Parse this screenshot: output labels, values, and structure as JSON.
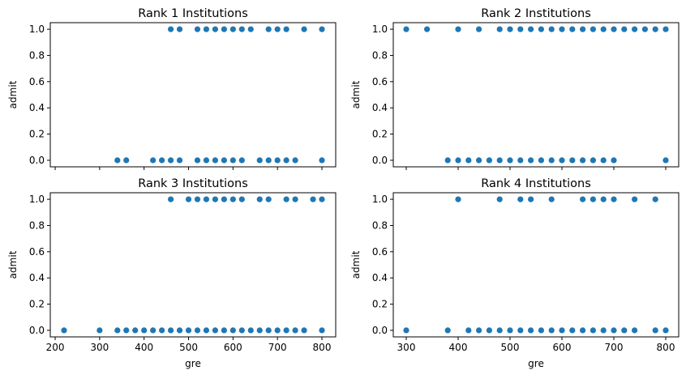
{
  "chart_data": [
    {
      "type": "scatter",
      "title": "Rank 1 Institutions",
      "xlabel": "",
      "ylabel": "admit",
      "xlim": [
        189,
        831
      ],
      "ylim": [
        -0.05,
        1.05
      ],
      "xticks": [],
      "xtick_labels": [],
      "yticks": [
        0.0,
        0.2,
        0.4,
        0.6,
        0.8,
        1.0
      ],
      "ytick_labels": [
        "0.0",
        "0.2",
        "0.4",
        "0.6",
        "0.8",
        "1.0"
      ],
      "color": "#1f77b4",
      "points": [
        [
          460,
          1
        ],
        [
          480,
          1
        ],
        [
          520,
          1
        ],
        [
          540,
          1
        ],
        [
          560,
          1
        ],
        [
          580,
          1
        ],
        [
          600,
          1
        ],
        [
          620,
          1
        ],
        [
          640,
          1
        ],
        [
          680,
          1
        ],
        [
          700,
          1
        ],
        [
          720,
          1
        ],
        [
          760,
          1
        ],
        [
          800,
          1
        ],
        [
          340,
          0
        ],
        [
          360,
          0
        ],
        [
          420,
          0
        ],
        [
          440,
          0
        ],
        [
          460,
          0
        ],
        [
          480,
          0
        ],
        [
          520,
          0
        ],
        [
          540,
          0
        ],
        [
          560,
          0
        ],
        [
          580,
          0
        ],
        [
          600,
          0
        ],
        [
          620,
          0
        ],
        [
          660,
          0
        ],
        [
          680,
          0
        ],
        [
          700,
          0
        ],
        [
          720,
          0
        ],
        [
          740,
          0
        ],
        [
          800,
          0
        ]
      ]
    },
    {
      "type": "scatter",
      "title": "Rank 2 Institutions",
      "xlabel": "",
      "ylabel": "admit",
      "xlim": [
        275,
        825
      ],
      "ylim": [
        -0.05,
        1.05
      ],
      "xticks": [],
      "xtick_labels": [],
      "yticks": [
        0.0,
        0.2,
        0.4,
        0.6,
        0.8,
        1.0
      ],
      "ytick_labels": [
        "0.0",
        "0.2",
        "0.4",
        "0.6",
        "0.8",
        "1.0"
      ],
      "color": "#1f77b4",
      "points": [
        [
          300,
          1
        ],
        [
          340,
          1
        ],
        [
          400,
          1
        ],
        [
          440,
          1
        ],
        [
          480,
          1
        ],
        [
          500,
          1
        ],
        [
          520,
          1
        ],
        [
          540,
          1
        ],
        [
          560,
          1
        ],
        [
          580,
          1
        ],
        [
          600,
          1
        ],
        [
          620,
          1
        ],
        [
          640,
          1
        ],
        [
          660,
          1
        ],
        [
          680,
          1
        ],
        [
          700,
          1
        ],
        [
          720,
          1
        ],
        [
          740,
          1
        ],
        [
          760,
          1
        ],
        [
          780,
          1
        ],
        [
          800,
          1
        ],
        [
          380,
          0
        ],
        [
          400,
          0
        ],
        [
          420,
          0
        ],
        [
          440,
          0
        ],
        [
          460,
          0
        ],
        [
          480,
          0
        ],
        [
          500,
          0
        ],
        [
          520,
          0
        ],
        [
          540,
          0
        ],
        [
          560,
          0
        ],
        [
          580,
          0
        ],
        [
          600,
          0
        ],
        [
          620,
          0
        ],
        [
          640,
          0
        ],
        [
          660,
          0
        ],
        [
          680,
          0
        ],
        [
          700,
          0
        ],
        [
          800,
          0
        ]
      ]
    },
    {
      "type": "scatter",
      "title": "Rank 3 Institutions",
      "xlabel": "gre",
      "ylabel": "admit",
      "xlim": [
        189,
        831
      ],
      "ylim": [
        -0.05,
        1.05
      ],
      "xticks": [
        200,
        300,
        400,
        500,
        600,
        700,
        800
      ],
      "xtick_labels": [
        "200",
        "300",
        "400",
        "500",
        "600",
        "700",
        "800"
      ],
      "yticks": [
        0.0,
        0.2,
        0.4,
        0.6,
        0.8,
        1.0
      ],
      "ytick_labels": [
        "0.0",
        "0.2",
        "0.4",
        "0.6",
        "0.8",
        "1.0"
      ],
      "color": "#1f77b4",
      "points": [
        [
          460,
          1
        ],
        [
          500,
          1
        ],
        [
          520,
          1
        ],
        [
          540,
          1
        ],
        [
          560,
          1
        ],
        [
          580,
          1
        ],
        [
          600,
          1
        ],
        [
          620,
          1
        ],
        [
          660,
          1
        ],
        [
          680,
          1
        ],
        [
          720,
          1
        ],
        [
          740,
          1
        ],
        [
          780,
          1
        ],
        [
          800,
          1
        ],
        [
          220,
          0
        ],
        [
          300,
          0
        ],
        [
          340,
          0
        ],
        [
          360,
          0
        ],
        [
          380,
          0
        ],
        [
          400,
          0
        ],
        [
          420,
          0
        ],
        [
          440,
          0
        ],
        [
          460,
          0
        ],
        [
          480,
          0
        ],
        [
          500,
          0
        ],
        [
          520,
          0
        ],
        [
          540,
          0
        ],
        [
          560,
          0
        ],
        [
          580,
          0
        ],
        [
          600,
          0
        ],
        [
          620,
          0
        ],
        [
          640,
          0
        ],
        [
          660,
          0
        ],
        [
          680,
          0
        ],
        [
          700,
          0
        ],
        [
          720,
          0
        ],
        [
          740,
          0
        ],
        [
          760,
          0
        ],
        [
          800,
          0
        ]
      ]
    },
    {
      "type": "scatter",
      "title": "Rank 4 Institutions",
      "xlabel": "gre",
      "ylabel": "admit",
      "xlim": [
        275,
        825
      ],
      "ylim": [
        -0.05,
        1.05
      ],
      "xticks": [
        300,
        400,
        500,
        600,
        700,
        800
      ],
      "xtick_labels": [
        "300",
        "400",
        "500",
        "600",
        "700",
        "800"
      ],
      "yticks": [
        0.0,
        0.2,
        0.4,
        0.6,
        0.8,
        1.0
      ],
      "ytick_labels": [
        "0.0",
        "0.2",
        "0.4",
        "0.6",
        "0.8",
        "1.0"
      ],
      "color": "#1f77b4",
      "points": [
        [
          400,
          1
        ],
        [
          480,
          1
        ],
        [
          520,
          1
        ],
        [
          540,
          1
        ],
        [
          580,
          1
        ],
        [
          640,
          1
        ],
        [
          660,
          1
        ],
        [
          680,
          1
        ],
        [
          700,
          1
        ],
        [
          740,
          1
        ],
        [
          780,
          1
        ],
        [
          300,
          0
        ],
        [
          380,
          0
        ],
        [
          420,
          0
        ],
        [
          440,
          0
        ],
        [
          460,
          0
        ],
        [
          480,
          0
        ],
        [
          500,
          0
        ],
        [
          520,
          0
        ],
        [
          540,
          0
        ],
        [
          560,
          0
        ],
        [
          580,
          0
        ],
        [
          600,
          0
        ],
        [
          620,
          0
        ],
        [
          640,
          0
        ],
        [
          660,
          0
        ],
        [
          680,
          0
        ],
        [
          700,
          0
        ],
        [
          720,
          0
        ],
        [
          740,
          0
        ],
        [
          780,
          0
        ],
        [
          800,
          0
        ]
      ]
    }
  ]
}
